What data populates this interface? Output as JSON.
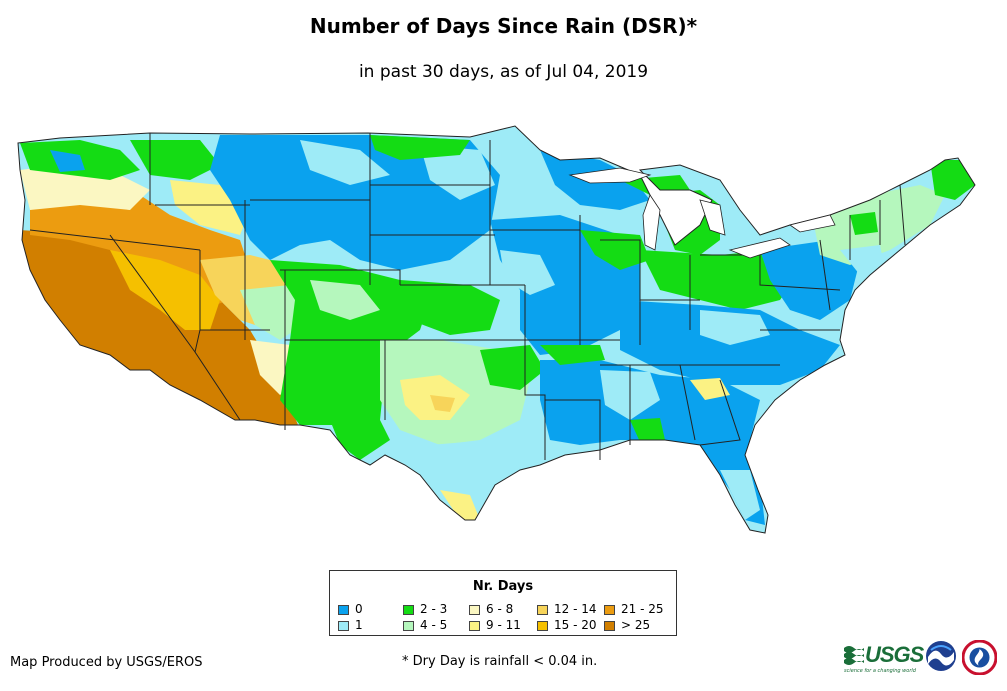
{
  "title": "Number of Days Since Rain (DSR)*",
  "subtitle": "in past 30 days, as of Jul 04, 2019",
  "legend": {
    "title": "Nr. Days",
    "items": [
      {
        "label": "0",
        "color": "#0aa2ee"
      },
      {
        "label": "1",
        "color": "#9eebf7"
      },
      {
        "label": "2 - 3",
        "color": "#14dc14"
      },
      {
        "label": "4 - 5",
        "color": "#b5f7bd"
      },
      {
        "label": "6 - 8",
        "color": "#fbf7c2"
      },
      {
        "label": "9 - 11",
        "color": "#fbf284"
      },
      {
        "label": "12 - 14",
        "color": "#f7d45a"
      },
      {
        "label": "15 - 20",
        "color": "#f5c000"
      },
      {
        "label": "21 - 25",
        "color": "#ec9c10"
      },
      {
        "label": "> 25",
        "color": "#d17f00"
      }
    ]
  },
  "footer": {
    "credit": "Map Produced by USGS/EROS",
    "footnote": "* Dry Day is rainfall < 0.04 in."
  },
  "logos": {
    "usgs_text": "USGS",
    "usgs_tagline": "science for a changing world"
  },
  "colors": {
    "state_border": "#222222",
    "background": "#ffffff"
  }
}
